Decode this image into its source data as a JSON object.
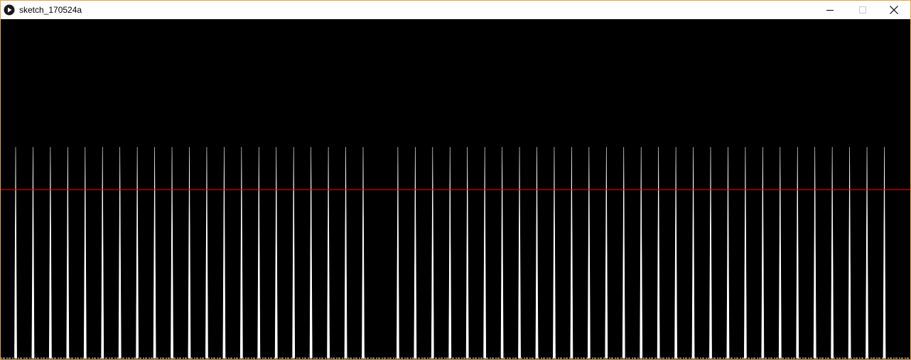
{
  "window": {
    "title": "sketch_170524a",
    "border_color": "#e8a33a"
  },
  "titlebar": {
    "app_icon": "processing-play-icon",
    "minimize_icon": "minimize-icon",
    "maximize_icon": "maximize-icon",
    "close_icon": "close-icon"
  },
  "canvas": {
    "background": "#000000",
    "threshold_line_color": "#ff0000",
    "pulse_color": "#ffffff",
    "pulse_count": 50,
    "gap_after_pulse_index": 21
  }
}
